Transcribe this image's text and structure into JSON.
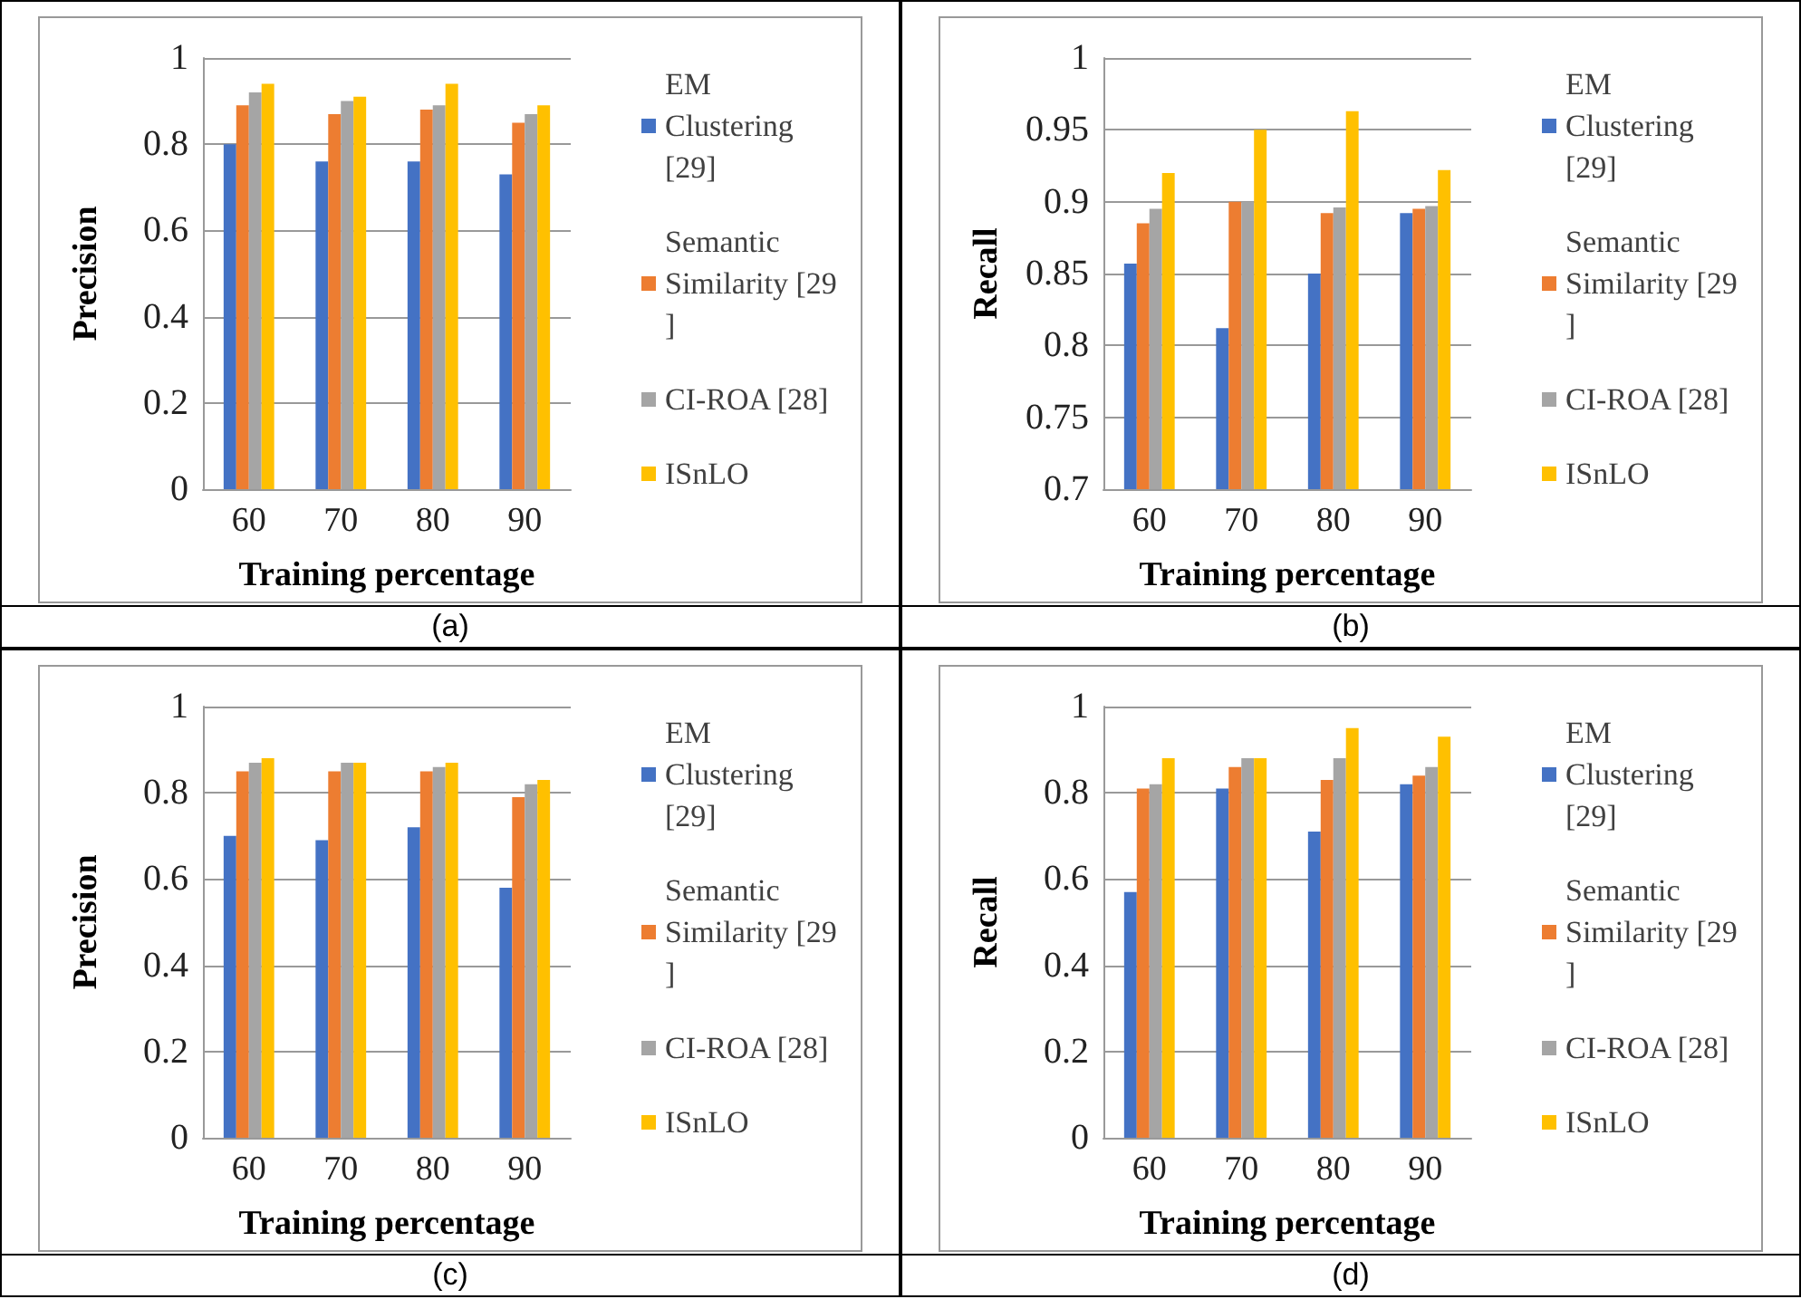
{
  "chart_data": [
    {
      "type": "bar",
      "xlabel": "Training percentage",
      "ylabel": "Precision",
      "annotations": [
        "(a)"
      ],
      "categories": [
        "60",
        "70",
        "80",
        "90"
      ],
      "ylim": [
        0,
        1
      ],
      "yticks": [
        0,
        0.2,
        0.4,
        0.6,
        0.8,
        1
      ],
      "grid": "y",
      "legend": "right",
      "series": [
        {
          "name": "EM Clustering [29]",
          "color": "#4472c4",
          "values": [
            0.8,
            0.76,
            0.76,
            0.73
          ]
        },
        {
          "name": "Semantic Similarity [29]",
          "color": "#ed7d31",
          "values": [
            0.89,
            0.87,
            0.88,
            0.85
          ]
        },
        {
          "name": "CI-ROA [28]",
          "color": "#a5a5a5",
          "values": [
            0.92,
            0.9,
            0.89,
            0.87
          ]
        },
        {
          "name": "ISnLO",
          "color": "#ffc000",
          "values": [
            0.94,
            0.91,
            0.94,
            0.89
          ]
        }
      ]
    },
    {
      "type": "bar",
      "xlabel": "Training percentage",
      "ylabel": "Recall",
      "annotations": [
        "(b)"
      ],
      "categories": [
        "60",
        "70",
        "80",
        "90"
      ],
      "ylim": [
        0.7,
        1
      ],
      "yticks": [
        0.7,
        0.75,
        0.8,
        0.85,
        0.9,
        0.95,
        1
      ],
      "grid": "y",
      "legend": "right",
      "series": [
        {
          "name": "EM Clustering [29]",
          "color": "#4472c4",
          "values": [
            0.857,
            0.812,
            0.85,
            0.892
          ]
        },
        {
          "name": "Semantic Similarity [29]",
          "color": "#ed7d31",
          "values": [
            0.885,
            0.9,
            0.892,
            0.895
          ]
        },
        {
          "name": "CI-ROA [28]",
          "color": "#a5a5a5",
          "values": [
            0.895,
            0.9,
            0.896,
            0.897
          ]
        },
        {
          "name": "ISnLO",
          "color": "#ffc000",
          "values": [
            0.92,
            0.95,
            0.963,
            0.922
          ]
        }
      ]
    },
    {
      "type": "bar",
      "xlabel": "Training percentage",
      "ylabel": "Precision",
      "annotations": [
        "(c)"
      ],
      "categories": [
        "60",
        "70",
        "80",
        "90"
      ],
      "ylim": [
        0,
        1
      ],
      "yticks": [
        0,
        0.2,
        0.4,
        0.6,
        0.8,
        1
      ],
      "grid": "y",
      "legend": "right",
      "series": [
        {
          "name": "EM Clustering [29]",
          "color": "#4472c4",
          "values": [
            0.7,
            0.69,
            0.72,
            0.58
          ]
        },
        {
          "name": "Semantic Similarity [29]",
          "color": "#ed7d31",
          "values": [
            0.85,
            0.85,
            0.85,
            0.79
          ]
        },
        {
          "name": "CI-ROA [28]",
          "color": "#a5a5a5",
          "values": [
            0.87,
            0.87,
            0.86,
            0.82
          ]
        },
        {
          "name": "ISnLO",
          "color": "#ffc000",
          "values": [
            0.88,
            0.87,
            0.87,
            0.83
          ]
        }
      ]
    },
    {
      "type": "bar",
      "xlabel": "Training percentage",
      "ylabel": "Recall",
      "annotations": [
        "(d)"
      ],
      "categories": [
        "60",
        "70",
        "80",
        "90"
      ],
      "ylim": [
        0,
        1
      ],
      "yticks": [
        0,
        0.2,
        0.4,
        0.6,
        0.8,
        1
      ],
      "grid": "y",
      "legend": "right",
      "series": [
        {
          "name": "EM Clustering [29]",
          "color": "#4472c4",
          "values": [
            0.57,
            0.81,
            0.71,
            0.82
          ]
        },
        {
          "name": "Semantic Similarity [29]",
          "color": "#ed7d31",
          "values": [
            0.81,
            0.86,
            0.83,
            0.84
          ]
        },
        {
          "name": "CI-ROA [28]",
          "color": "#a5a5a5",
          "values": [
            0.82,
            0.88,
            0.88,
            0.86
          ]
        },
        {
          "name": "ISnLO",
          "color": "#ffc000",
          "values": [
            0.88,
            0.88,
            0.95,
            0.93
          ]
        }
      ]
    }
  ]
}
